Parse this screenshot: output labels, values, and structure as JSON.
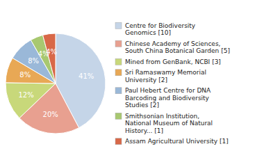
{
  "chart_data": {
    "type": "pie",
    "categories": [
      "Centre for Biodiversity\nGenomics [10]",
      "Chinese Academy of Sciences,\nSouth China Botanical Garden [5]",
      "Mined from GenBank, NCBI [3]",
      "Sri Ramaswamy Memorial\nUniversity [2]",
      "Paul Hebert Centre for DNA\nBarcoding and Biodiversity\nStudies [2]",
      "Smithsonian Institution,\nNational Museum of Natural\nHistory... [1]",
      "Assam Agricultural University [1]"
    ],
    "values": [
      41,
      20,
      12,
      8,
      8,
      4,
      4
    ],
    "value_labels": [
      "41%",
      "20%",
      "12%",
      "8%",
      "8%",
      "4%",
      "4%"
    ],
    "colors": [
      "#c5d5e8",
      "#e8a090",
      "#c8d87a",
      "#e8a855",
      "#9ab8d8",
      "#a8c870",
      "#d86848"
    ],
    "data_labels": true,
    "legend": "right"
  }
}
